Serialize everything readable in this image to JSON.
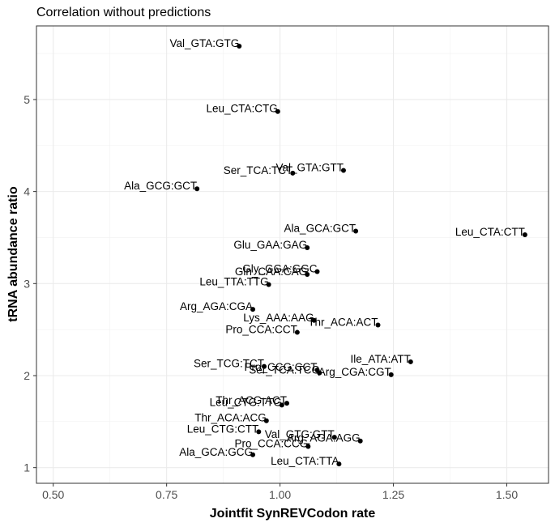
{
  "chart_data": {
    "type": "scatter",
    "title": "Correlation without predictions",
    "xlabel": "Jointfit SynREVCodon rate",
    "ylabel": "tRNA abundance ratio",
    "xlim": [
      0.463,
      1.592
    ],
    "ylim": [
      0.83,
      5.8
    ],
    "xticks": [
      0.5,
      0.75,
      1.0,
      1.25,
      1.5
    ],
    "xtick_labels": [
      "0.50",
      "0.75",
      "1.00",
      "1.25",
      "1.50"
    ],
    "yticks": [
      1,
      2,
      3,
      4,
      5
    ],
    "ytick_labels": [
      "1",
      "2",
      "3",
      "4",
      "5"
    ],
    "grid": true,
    "points": [
      {
        "label": "Val_GTA:GTG",
        "x": 0.91,
        "y": 5.58
      },
      {
        "label": "Leu_CTA:CTG",
        "x": 0.995,
        "y": 4.87
      },
      {
        "label": "Val_GTA:GTT",
        "x": 1.14,
        "y": 4.23
      },
      {
        "label": "Ser_TCA:TCT",
        "x": 1.028,
        "y": 4.2
      },
      {
        "label": "Ala_GCG:GCT",
        "x": 0.817,
        "y": 4.03
      },
      {
        "label": "Ala_GCA:GCT",
        "x": 1.167,
        "y": 3.57
      },
      {
        "label": "Leu_CTA:CTT",
        "x": 1.54,
        "y": 3.53
      },
      {
        "label": "Glu_GAA:GAG",
        "x": 1.06,
        "y": 3.39
      },
      {
        "label": "Gly_GGA:GGC",
        "x": 1.082,
        "y": 3.13
      },
      {
        "label": "Gln_CAA:CAG",
        "x": 1.06,
        "y": 3.1
      },
      {
        "label": "Leu_TTA:TTG",
        "x": 0.975,
        "y": 2.99
      },
      {
        "label": "Arg_AGA:CGA",
        "x": 0.94,
        "y": 2.72
      },
      {
        "label": "Lys_AAA:AAG",
        "x": 1.075,
        "y": 2.6
      },
      {
        "label": "Thr_ACA:ACT",
        "x": 1.216,
        "y": 2.55
      },
      {
        "label": "Pro_CCA:CCT",
        "x": 1.038,
        "y": 2.47
      },
      {
        "label": "Ile_ATA:ATT",
        "x": 1.288,
        "y": 2.15
      },
      {
        "label": "Ser_TCG:TCT",
        "x": 0.965,
        "y": 2.1
      },
      {
        "label": "Pro_CCG:CCT",
        "x": 1.082,
        "y": 2.06
      },
      {
        "label": "Ser_TCA:TCC",
        "x": 1.087,
        "y": 2.03
      },
      {
        "label": "Arg_CGA:CGT",
        "x": 1.245,
        "y": 2.01
      },
      {
        "label": "Thr_ACG:ACT",
        "x": 1.015,
        "y": 1.7
      },
      {
        "label": "Leu_CTG:TTG",
        "x": 1.004,
        "y": 1.68
      },
      {
        "label": "Thr_ACA:ACG",
        "x": 0.97,
        "y": 1.51
      },
      {
        "label": "Leu_CTG:CTT",
        "x": 0.953,
        "y": 1.39
      },
      {
        "label": "Val_GTG:GTT",
        "x": 1.12,
        "y": 1.33
      },
      {
        "label": "Arg_AGA:AGG",
        "x": 1.177,
        "y": 1.29
      },
      {
        "label": "Pro_CCA:CCG",
        "x": 1.062,
        "y": 1.23
      },
      {
        "label": "Ala_GCA:GCG",
        "x": 0.94,
        "y": 1.14
      },
      {
        "label": "Leu_CTA:TTA",
        "x": 1.13,
        "y": 1.04
      }
    ]
  }
}
